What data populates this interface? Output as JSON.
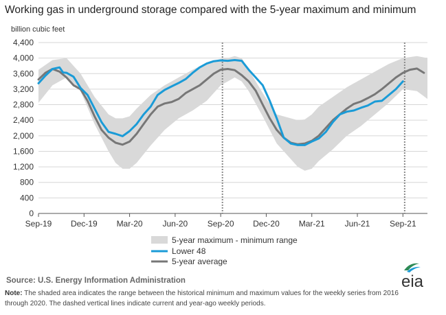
{
  "chart_data": {
    "type": "line",
    "title": "Working gas in underground  storage compared with the 5-year maximum and minimum",
    "ylabel": "billion cubic feet",
    "ylim": [
      0,
      4400
    ],
    "yticks": [
      "0",
      "400",
      "800",
      "1,200",
      "1,600",
      "2,000",
      "2,400",
      "2,800",
      "3,200",
      "3,600",
      "4,000",
      "4,400"
    ],
    "xlim_weeks": [
      0,
      111
    ],
    "xticks": [
      {
        "label": "Sep-19",
        "week": 0
      },
      {
        "label": "Dec-19",
        "week": 13
      },
      {
        "label": "Mar-20",
        "week": 26
      },
      {
        "label": "Jun-20",
        "week": 39
      },
      {
        "label": "Sep-20",
        "week": 52
      },
      {
        "label": "Dec-20",
        "week": 65
      },
      {
        "label": "Mar-21",
        "week": 78
      },
      {
        "label": "Jun-21",
        "week": 91
      },
      {
        "label": "Sep-21",
        "week": 104
      }
    ],
    "current_week_marker": 104.5,
    "year_ago_week_marker": 52.5,
    "range_band": {
      "name": "5-year maximum - minimum range",
      "color": "#d9d9d9",
      "week": [
        0,
        4,
        8,
        12,
        16,
        20,
        22,
        24,
        26,
        28,
        32,
        36,
        40,
        44,
        48,
        52,
        54,
        56,
        58,
        60,
        64,
        68,
        72,
        74,
        76,
        78,
        80,
        84,
        88,
        92,
        96,
        100,
        104,
        108,
        111
      ],
      "maximum": [
        3700,
        3950,
        4000,
        3600,
        3000,
        2550,
        2450,
        2450,
        2500,
        2700,
        3050,
        3300,
        3500,
        3700,
        3880,
        3980,
        4000,
        4050,
        4000,
        3700,
        3100,
        2550,
        2450,
        2400,
        2420,
        2550,
        2750,
        3000,
        3250,
        3450,
        3650,
        3850,
        4000,
        4050,
        4000
      ],
      "minimum": [
        2850,
        3300,
        3500,
        3150,
        2300,
        1600,
        1300,
        1150,
        1150,
        1300,
        1750,
        2150,
        2450,
        2650,
        2900,
        3300,
        3400,
        3500,
        3400,
        3150,
        2500,
        1800,
        1400,
        1200,
        1100,
        1150,
        1350,
        1650,
        2000,
        2250,
        2550,
        2850,
        3200,
        3150,
        2950
      ]
    },
    "series": [
      {
        "name": "Lower 48",
        "color": "#1a9bd7",
        "week": [
          0,
          2,
          4,
          6,
          7,
          8,
          10,
          12,
          14,
          16,
          18,
          20,
          22,
          24,
          26,
          28,
          30,
          32,
          34,
          36,
          38,
          40,
          42,
          44,
          46,
          48,
          50,
          52,
          54,
          56,
          58,
          60,
          62,
          64,
          66,
          68,
          70,
          72,
          74,
          76,
          78,
          80,
          82,
          84,
          86,
          88,
          90,
          92,
          94,
          96,
          98,
          100,
          102,
          104
        ],
        "values": [
          3350,
          3550,
          3720,
          3760,
          3630,
          3620,
          3520,
          3230,
          3050,
          2700,
          2350,
          2100,
          2050,
          1990,
          2120,
          2300,
          2550,
          2750,
          3050,
          3180,
          3270,
          3360,
          3460,
          3620,
          3760,
          3860,
          3920,
          3940,
          3930,
          3950,
          3930,
          3700,
          3500,
          3300,
          2900,
          2450,
          1950,
          1800,
          1760,
          1760,
          1850,
          1930,
          2100,
          2350,
          2550,
          2620,
          2650,
          2720,
          2780,
          2880,
          2900,
          3050,
          3200,
          3400
        ]
      },
      {
        "name": "5-year average",
        "color": "#777777",
        "week": [
          0,
          2,
          4,
          6,
          8,
          10,
          12,
          14,
          16,
          18,
          20,
          22,
          24,
          26,
          28,
          30,
          32,
          34,
          36,
          38,
          40,
          42,
          44,
          46,
          48,
          50,
          52,
          54,
          56,
          58,
          60,
          62,
          64,
          66,
          68,
          70,
          72,
          74,
          76,
          78,
          80,
          82,
          84,
          86,
          88,
          90,
          92,
          94,
          96,
          98,
          100,
          102,
          104,
          106,
          108,
          110
        ],
        "values": [
          3450,
          3620,
          3720,
          3650,
          3500,
          3300,
          3200,
          2900,
          2500,
          2150,
          1950,
          1820,
          1770,
          1850,
          2050,
          2300,
          2550,
          2750,
          2830,
          2870,
          2950,
          3100,
          3200,
          3300,
          3450,
          3600,
          3700,
          3720,
          3690,
          3560,
          3400,
          3160,
          2800,
          2450,
          2150,
          1950,
          1820,
          1780,
          1800,
          1870,
          2000,
          2200,
          2400,
          2550,
          2700,
          2820,
          2880,
          2970,
          3070,
          3200,
          3350,
          3500,
          3620,
          3700,
          3730,
          3620
        ]
      }
    ],
    "legend": [
      {
        "label": "5-year maximum - minimum range",
        "kind": "band"
      },
      {
        "label": "Lower 48",
        "kind": "line"
      },
      {
        "label": "5-year average",
        "kind": "line"
      }
    ]
  },
  "source_text": "Source:  U.S. Energy Information Administration",
  "note_label": "Note:",
  "note_text": " The shaded area indicates the range between the historical minimum and maximum values for the weekly series from 2016 through 2020. The dashed vertical lines indicate current and year-ago weekly periods.",
  "logo_text": "eia",
  "colors": {
    "blue": "#1a9bd7",
    "gray_line": "#777777",
    "band": "#d9d9d9",
    "grid": "#d6d6d6",
    "logo_green": "#2e8b57"
  }
}
